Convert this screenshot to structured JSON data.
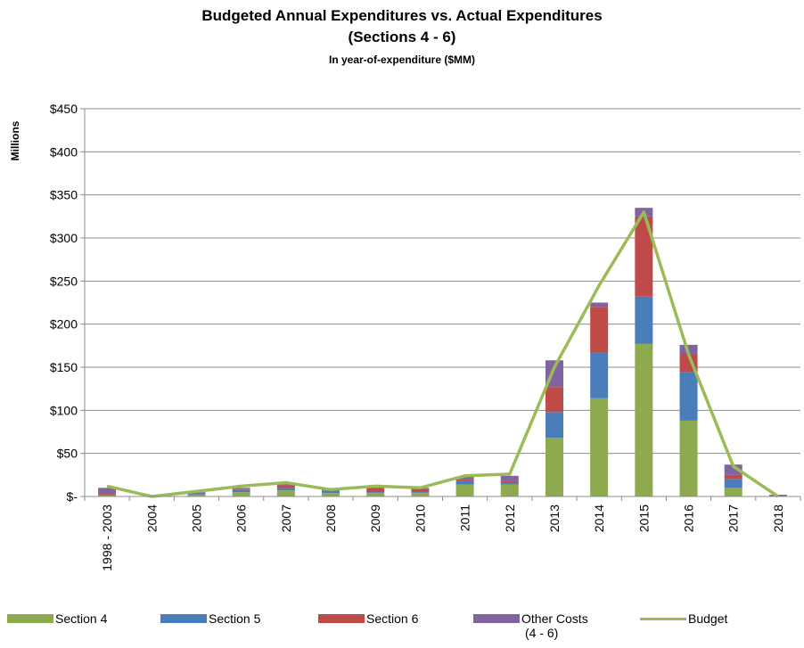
{
  "chart_data": {
    "type": "bar",
    "stacked": true,
    "title": "Budgeted Annual Expenditures vs. Actual Expenditures",
    "subtitle": "(Sections 4 - 6)",
    "subtitle2": "In year-of-expenditure ($MM)",
    "ylabel": "Millions",
    "ylim": [
      0,
      450
    ],
    "yticks": [
      0,
      50,
      100,
      150,
      200,
      250,
      300,
      350,
      400,
      450
    ],
    "ytick_labels": [
      "$-",
      "$50",
      "$100",
      "$150",
      "$200",
      "$250",
      "$300",
      "$350",
      "$400",
      "$450"
    ],
    "grid": true,
    "legend_position": "bottom",
    "categories": [
      "1998 - 2003",
      "2004",
      "2005",
      "2006",
      "2007",
      "2008",
      "2009",
      "2010",
      "2011",
      "2012",
      "2013",
      "2014",
      "2015",
      "2016",
      "2017",
      "2018"
    ],
    "series": [
      {
        "name": "Section 4",
        "color": "#8DAA4E",
        "kind": "bar",
        "values": [
          1,
          0,
          2,
          5,
          7,
          4,
          4,
          4,
          14,
          14,
          68,
          114,
          177,
          88,
          10,
          0
        ]
      },
      {
        "name": "Section 5",
        "color": "#4A7EBB",
        "kind": "bar",
        "values": [
          1,
          0,
          1,
          3,
          3,
          3,
          1,
          1,
          4,
          2,
          30,
          53,
          55,
          56,
          10,
          0
        ]
      },
      {
        "name": "Section 6",
        "color": "#BE4B48",
        "kind": "bar",
        "values": [
          1,
          0,
          1,
          1,
          3,
          1,
          5,
          4,
          2,
          2,
          29,
          53,
          93,
          21,
          5,
          0
        ]
      },
      {
        "name": "Other Costs\n(4 - 6)",
        "color": "#7F64A0",
        "kind": "bar",
        "values": [
          7,
          0,
          1,
          1,
          2,
          1,
          1,
          1,
          3,
          6,
          31,
          5,
          10,
          11,
          12,
          2
        ]
      },
      {
        "name": "Budget",
        "color": "#9BBB59",
        "kind": "line",
        "values": [
          12,
          0,
          6,
          12,
          16,
          8,
          12,
          10,
          24,
          26,
          150,
          245,
          330,
          165,
          35,
          0
        ]
      }
    ]
  },
  "legend": [
    {
      "label": "Section 4",
      "color": "#8DAA4E",
      "kind": "bar"
    },
    {
      "label": "Section 5",
      "color": "#4A7EBB",
      "kind": "bar"
    },
    {
      "label": "Section 6",
      "color": "#BE4B48",
      "kind": "bar"
    },
    {
      "label": "Other Costs",
      "label2": "(4 - 6)",
      "color": "#7F64A0",
      "kind": "bar"
    },
    {
      "label": "Budget",
      "color": "#9BBB59",
      "kind": "line"
    }
  ]
}
